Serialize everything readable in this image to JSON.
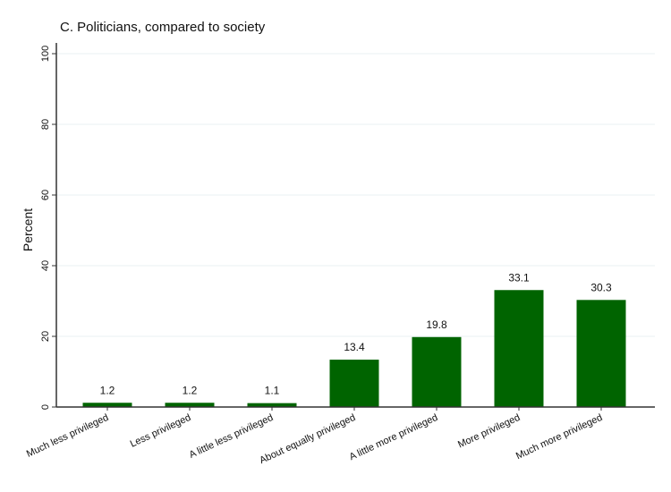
{
  "chart_data": {
    "type": "bar",
    "title": "C. Politicians, compared to society",
    "xlabel": "",
    "ylabel": "Percent",
    "ylim": [
      0,
      100
    ],
    "yticks": [
      0,
      20,
      40,
      60,
      80,
      100
    ],
    "grid": true,
    "categories": [
      "Much less privileged",
      "Less privileged",
      "A little less privileged",
      "About equally privileged",
      "A little more privileged",
      "More privileged",
      "Much more privileged"
    ],
    "values": [
      1.2,
      1.2,
      1.1,
      13.4,
      19.8,
      33.1,
      30.3
    ],
    "data_labels": [
      "1.2",
      "1.2",
      "1.1",
      "13.4",
      "19.8",
      "33.1",
      "30.3"
    ],
    "bar_color": "#006400",
    "grid_color": "#eaf2f3"
  }
}
